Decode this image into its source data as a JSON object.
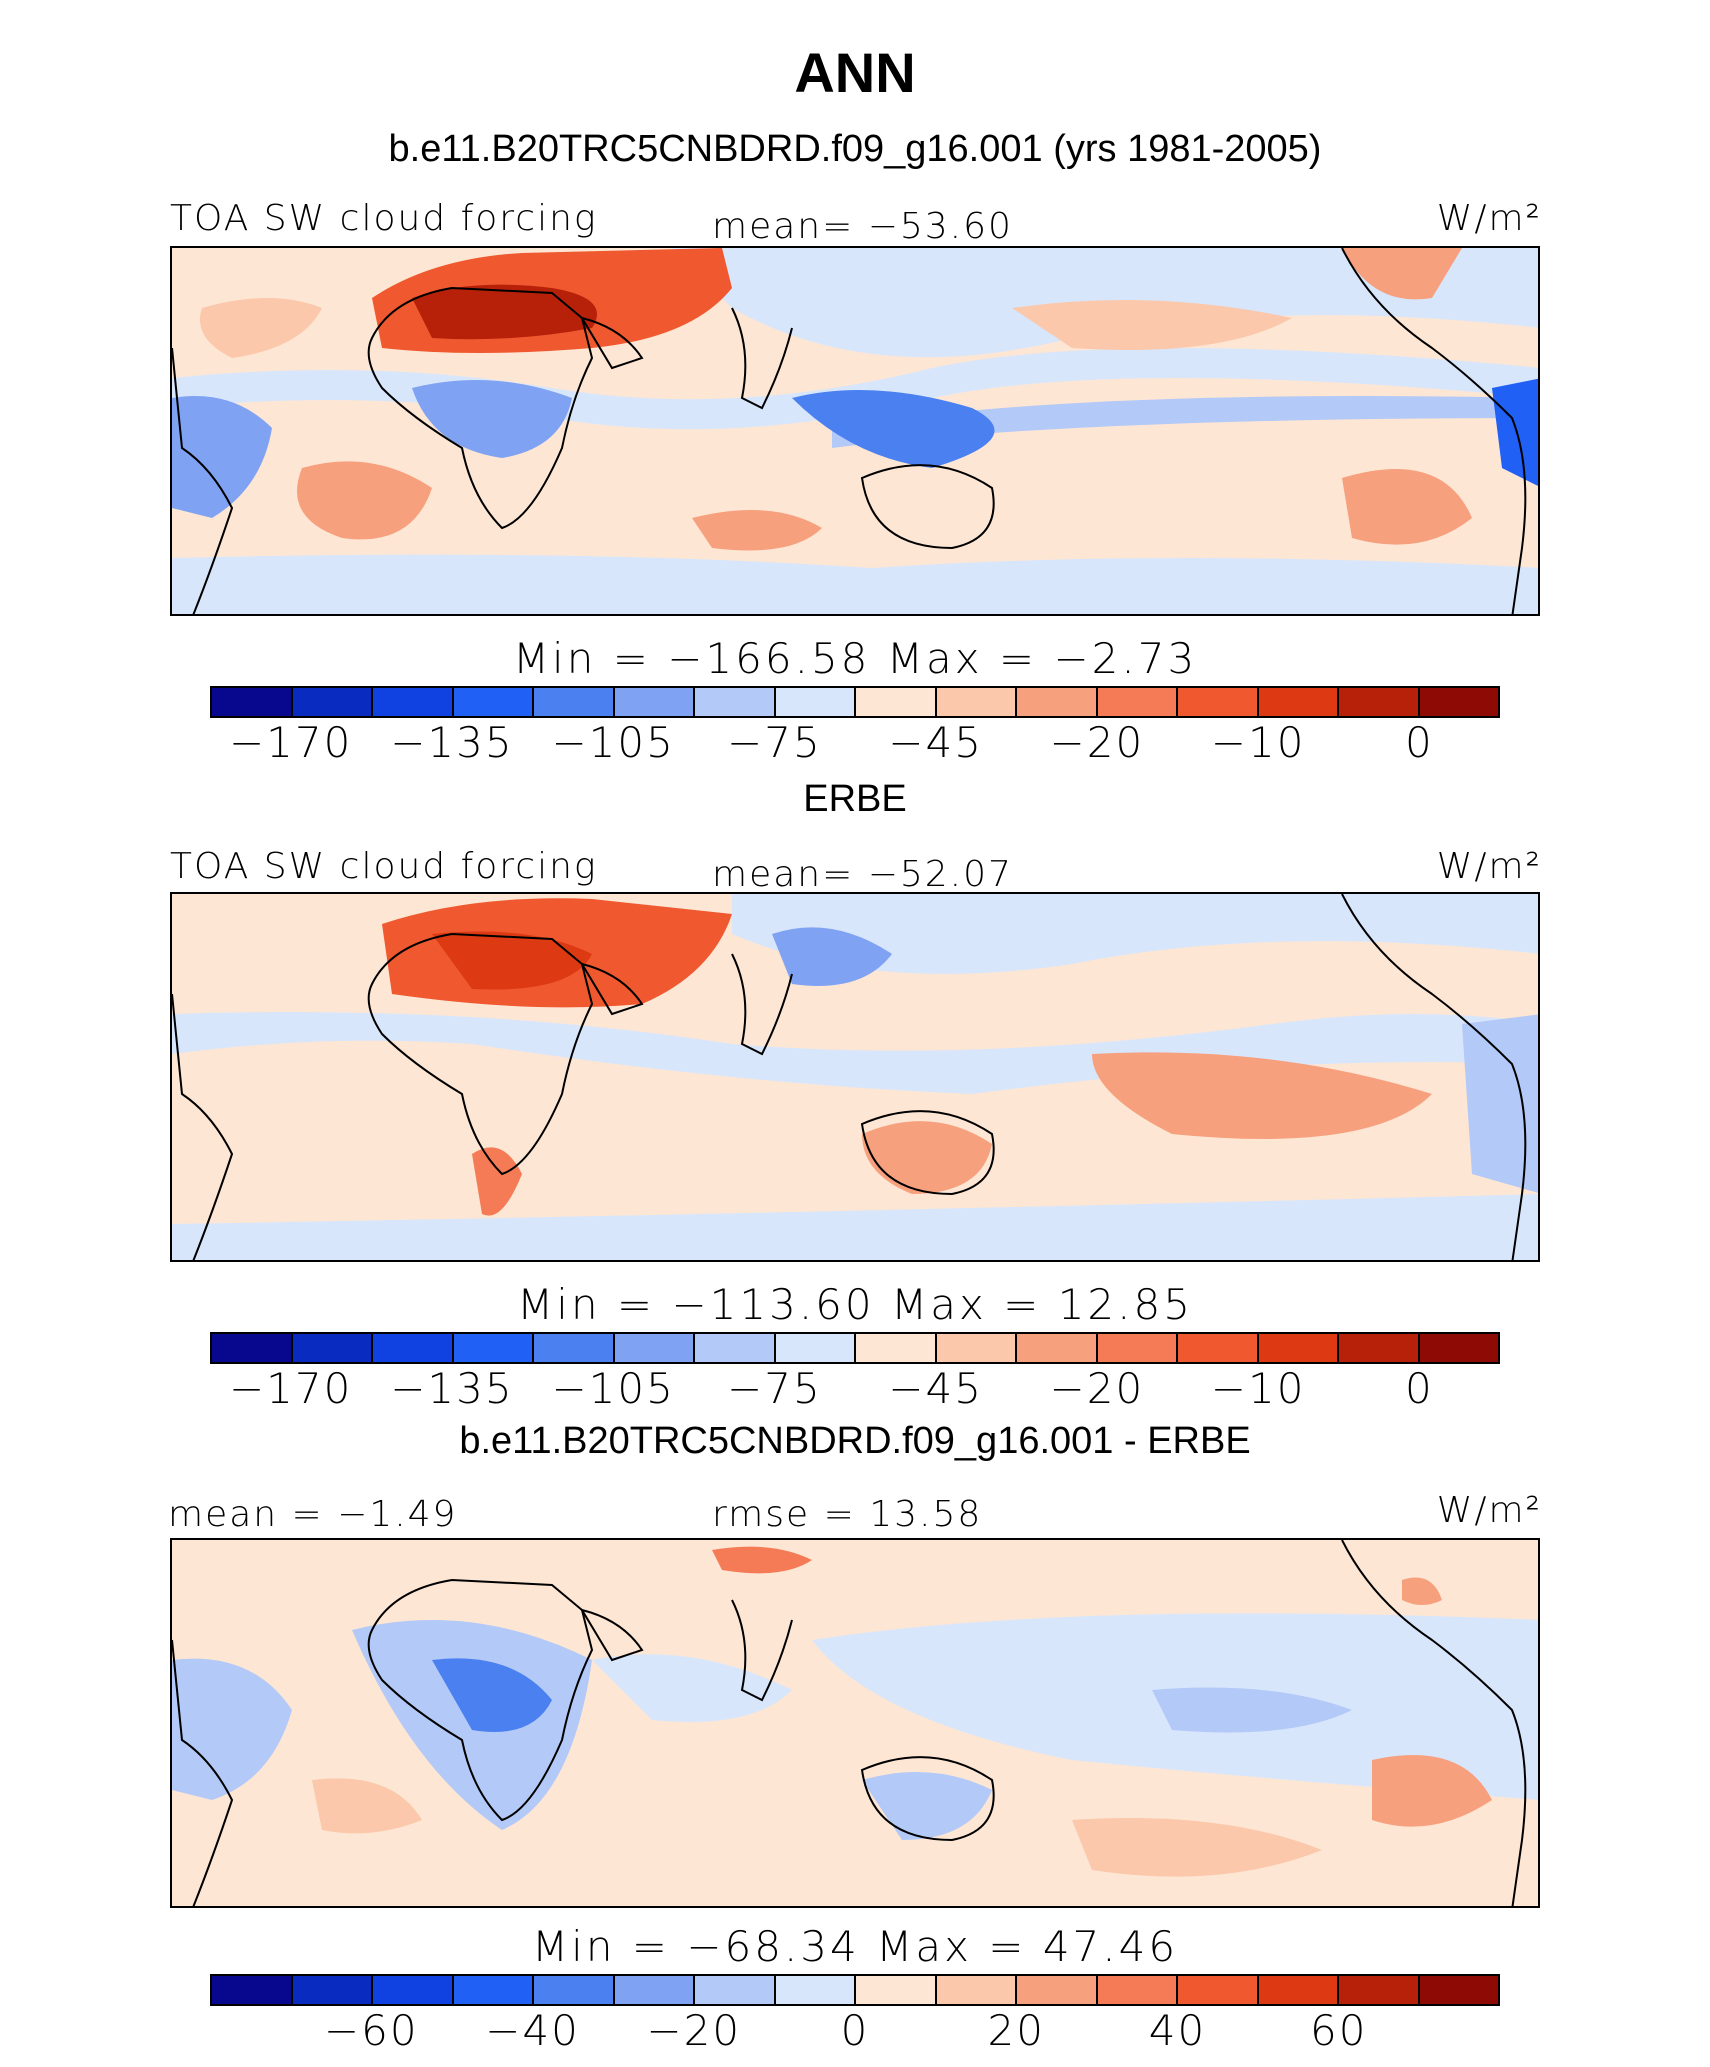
{
  "figure": {
    "title": "ANN",
    "colors": {
      "levels": [
        "#08088f",
        "#0a2bbf",
        "#0f42e0",
        "#2060f5",
        "#4a80f0",
        "#7fa3f2",
        "#b3c9f7",
        "#d8e6fb",
        "#fde6d4",
        "#fbc8ab",
        "#f7a07e",
        "#f47b55",
        "#f0582f",
        "#dd3a13",
        "#b82109",
        "#8e0a05"
      ]
    }
  },
  "panels": [
    {
      "title": "b.e11.B20TRC5CNBDRD.f09_g16.001 (yrs 1981-2005)",
      "left_label": "TOA SW cloud forcing",
      "center_label": "mean=  −53.60",
      "units": "W/m²",
      "minmax": "Min  =  −166.58  Max  =   −2.73",
      "tick_labels": [
        "−170",
        "−135",
        "−105",
        "−75",
        "−45",
        "−20",
        "−10",
        "0"
      ],
      "tick_positions": [
        1,
        3,
        5,
        7,
        9,
        11,
        13,
        15
      ]
    },
    {
      "title": "ERBE",
      "left_label": "TOA SW cloud forcing",
      "center_label": "mean=  −52.07",
      "units": "W/m²",
      "minmax": "Min  =  −113.60  Max  =   12.85",
      "tick_labels": [
        "−170",
        "−135",
        "−105",
        "−75",
        "−45",
        "−20",
        "−10",
        "0"
      ],
      "tick_positions": [
        1,
        3,
        5,
        7,
        9,
        11,
        13,
        15
      ]
    },
    {
      "title": "b.e11.B20TRC5CNBDRD.f09_g16.001 - ERBE",
      "left_label": "mean  =   −1.49",
      "center_label": "rmse  =   13.58",
      "units": "W/m²",
      "minmax": "Min  =  −68.34  Max  =   47.46",
      "tick_labels": [
        "−60",
        "−40",
        "−20",
        "0",
        "20",
        "40",
        "60"
      ],
      "tick_positions": [
        2,
        4,
        6,
        8,
        10,
        12,
        14
      ]
    }
  ],
  "chart_data": [
    {
      "type": "heatmap",
      "title": "b.e11.B20TRC5CNBDRD.f09_g16.001 (yrs 1981-2005)",
      "variable": "TOA SW cloud forcing",
      "units": "W/m²",
      "mean": -53.6,
      "min": -166.58,
      "max": -2.73,
      "colorbar_levels": [
        -170,
        -150,
        -135,
        -120,
        -105,
        -90,
        -75,
        -60,
        -45,
        -30,
        -20,
        -15,
        -10,
        -5,
        0
      ],
      "colorbar_tick_labels": [
        -170,
        -135,
        -105,
        -75,
        -45,
        -20,
        -10,
        0
      ]
    },
    {
      "type": "heatmap",
      "title": "ERBE",
      "variable": "TOA SW cloud forcing",
      "units": "W/m²",
      "mean": -52.07,
      "min": -113.6,
      "max": 12.85,
      "colorbar_levels": [
        -170,
        -150,
        -135,
        -120,
        -105,
        -90,
        -75,
        -60,
        -45,
        -30,
        -20,
        -15,
        -10,
        -5,
        0
      ],
      "colorbar_tick_labels": [
        -170,
        -135,
        -105,
        -75,
        -45,
        -20,
        -10,
        0
      ]
    },
    {
      "type": "heatmap",
      "title": "b.e11.B20TRC5CNBDRD.f09_g16.001 - ERBE",
      "units": "W/m²",
      "mean": -1.49,
      "rmse": 13.58,
      "min": -68.34,
      "max": 47.46,
      "colorbar_levels": [
        -70,
        -60,
        -50,
        -40,
        -30,
        -20,
        -10,
        0,
        10,
        20,
        30,
        40,
        50,
        60,
        70
      ],
      "colorbar_tick_labels": [
        -60,
        -40,
        -20,
        0,
        20,
        40,
        60
      ]
    }
  ]
}
